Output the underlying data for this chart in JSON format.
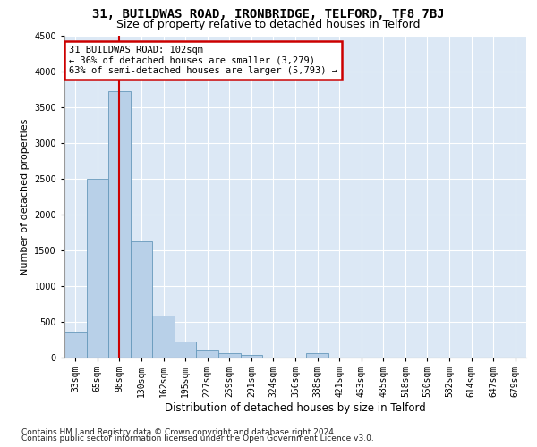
{
  "title1": "31, BUILDWAS ROAD, IRONBRIDGE, TELFORD, TF8 7BJ",
  "title2": "Size of property relative to detached houses in Telford",
  "xlabel": "Distribution of detached houses by size in Telford",
  "ylabel": "Number of detached properties",
  "footnote1": "Contains HM Land Registry data © Crown copyright and database right 2024.",
  "footnote2": "Contains public sector information licensed under the Open Government Licence v3.0.",
  "categories": [
    "33sqm",
    "65sqm",
    "98sqm",
    "130sqm",
    "162sqm",
    "195sqm",
    "227sqm",
    "259sqm",
    "291sqm",
    "324sqm",
    "356sqm",
    "388sqm",
    "421sqm",
    "453sqm",
    "485sqm",
    "518sqm",
    "550sqm",
    "582sqm",
    "614sqm",
    "647sqm",
    "679sqm"
  ],
  "values": [
    360,
    2500,
    3720,
    1630,
    590,
    220,
    105,
    60,
    40,
    0,
    0,
    60,
    0,
    0,
    0,
    0,
    0,
    0,
    0,
    0,
    0
  ],
  "bar_color": "#b8d0e8",
  "bar_edge_color": "#6699bb",
  "highlight_bar_index": 2,
  "highlight_line_color": "#cc0000",
  "property_label": "31 BUILDWAS ROAD: 102sqm",
  "annotation_line1": "← 36% of detached houses are smaller (3,279)",
  "annotation_line2": "63% of semi-detached houses are larger (5,793) →",
  "annotation_box_facecolor": "#ffffff",
  "annotation_box_edgecolor": "#cc0000",
  "ylim": [
    0,
    4500
  ],
  "yticks": [
    0,
    500,
    1000,
    1500,
    2000,
    2500,
    3000,
    3500,
    4000,
    4500
  ],
  "figure_facecolor": "#ffffff",
  "axes_facecolor": "#dce8f5",
  "grid_color": "#ffffff",
  "title1_fontsize": 10,
  "title2_fontsize": 9,
  "xlabel_fontsize": 8.5,
  "ylabel_fontsize": 8,
  "tick_fontsize": 7,
  "annotation_fontsize": 7.5,
  "footnote_fontsize": 6.5
}
